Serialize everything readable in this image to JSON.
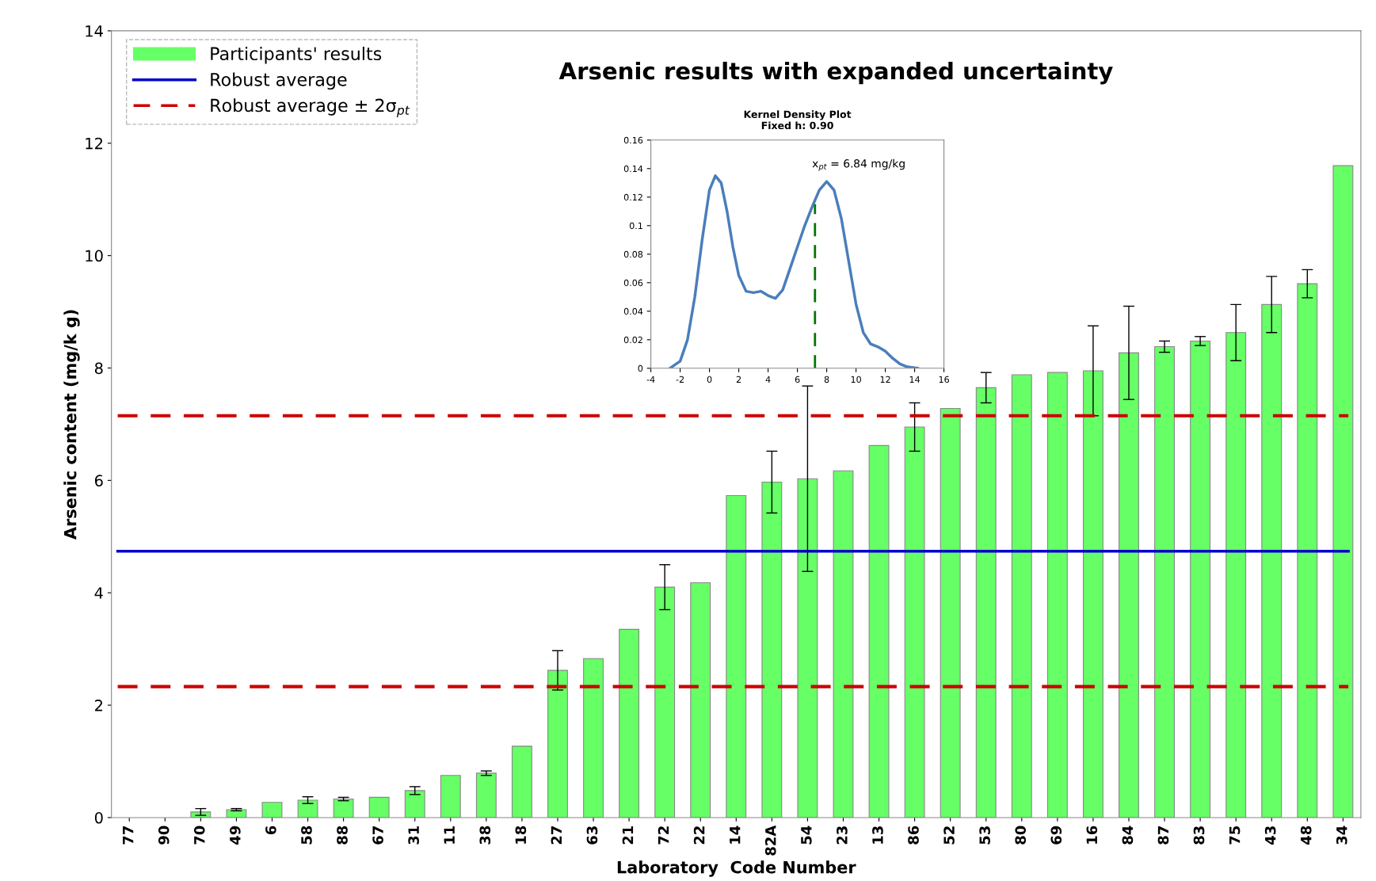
{
  "chart_data": [
    {
      "type": "bar",
      "title": "Arsenic results with expanded uncertainty",
      "xlabel": "Laboratory  Code Number",
      "ylabel": "Arsenic content (mg/k g)",
      "categories": [
        "77",
        "90",
        "70",
        "49",
        "6",
        "58",
        "88",
        "67",
        "31",
        "11",
        "38",
        "18",
        "27",
        "63",
        "21",
        "72",
        "22",
        "14",
        "82A",
        "54",
        "23",
        "13",
        "86",
        "52",
        "53",
        "80",
        "69",
        "16",
        "84",
        "87",
        "83",
        "75",
        "43",
        "48",
        "34"
      ],
      "series": [
        {
          "name": "Participants' results",
          "color": "#66ff66",
          "values": [
            null,
            null,
            0.1,
            0.14,
            0.27,
            0.31,
            0.33,
            0.36,
            0.48,
            0.75,
            0.79,
            1.27,
            2.62,
            2.83,
            3.35,
            4.1,
            4.18,
            5.73,
            5.97,
            6.03,
            6.17,
            6.62,
            6.95,
            7.28,
            7.65,
            7.88,
            7.92,
            7.95,
            8.27,
            8.38,
            8.48,
            8.63,
            9.13,
            9.5,
            11.6
          ],
          "errors": [
            null,
            null,
            0.06,
            0.02,
            null,
            0.06,
            0.03,
            null,
            0.07,
            null,
            0.04,
            null,
            0.35,
            null,
            null,
            0.4,
            null,
            null,
            0.55,
            1.65,
            null,
            null,
            0.43,
            null,
            0.27,
            null,
            null,
            0.8,
            0.83,
            0.1,
            0.08,
            0.5,
            0.5,
            0.25,
            null
          ]
        }
      ],
      "ylim": [
        0,
        14
      ],
      "yticks": [
        0,
        2,
        4,
        6,
        8,
        10,
        12,
        14
      ],
      "grid": false,
      "legend": "top left",
      "ref_lines": [
        {
          "axis": "y",
          "value": 4.74,
          "label": "Robust average",
          "color": "#0000cc",
          "line_style": "solid"
        },
        {
          "axis": "y",
          "value": 7.15,
          "label": "Robust average ± 2σ$_{pt}$",
          "color": "#cc0000",
          "line_style": "dashed"
        },
        {
          "axis": "y",
          "value": 2.33,
          "color": "#cc0000",
          "line_style": "dashed"
        }
      ]
    },
    {
      "type": "line",
      "title": "Kernel Density Plot\nFixed h: 0.90",
      "xlim": [
        -4,
        16
      ],
      "xticks": [
        -4,
        -2,
        0,
        2,
        4,
        6,
        8,
        10,
        12,
        14,
        16
      ],
      "ylim": [
        0,
        0.16
      ],
      "yticks": [
        0,
        0.02,
        0.04,
        0.06,
        0.08,
        0.1,
        0.12,
        0.14,
        0.16
      ],
      "grid": false,
      "annotations": [
        "x$_{pt}$ = 6.84 mg/kg"
      ],
      "series": [
        {
          "color": "#4a7ebb",
          "line_style": "solid",
          "x": [
            -2.7,
            -2,
            -1.5,
            -1,
            -0.5,
            0,
            0.4,
            0.8,
            1.2,
            1.6,
            2,
            2.5,
            3,
            3.5,
            4,
            4.5,
            5,
            5.5,
            6,
            6.5,
            7,
            7.5,
            8,
            8.5,
            9,
            9.5,
            10,
            10.5,
            11,
            11.5,
            12,
            12.5,
            13,
            13.5,
            14.2
          ],
          "values": [
            0,
            0.005,
            0.02,
            0.05,
            0.09,
            0.125,
            0.135,
            0.13,
            0.11,
            0.085,
            0.065,
            0.054,
            0.053,
            0.054,
            0.051,
            0.049,
            0.055,
            0.07,
            0.085,
            0.1,
            0.113,
            0.125,
            0.131,
            0.125,
            0.105,
            0.075,
            0.045,
            0.025,
            0.017,
            0.015,
            0.012,
            0.007,
            0.003,
            0.001,
            0
          ]
        },
        {
          "color": "#007700",
          "line_style": "dashed",
          "x": [
            7.2,
            7.2
          ],
          "values": [
            0,
            0.115
          ]
        }
      ]
    }
  ]
}
